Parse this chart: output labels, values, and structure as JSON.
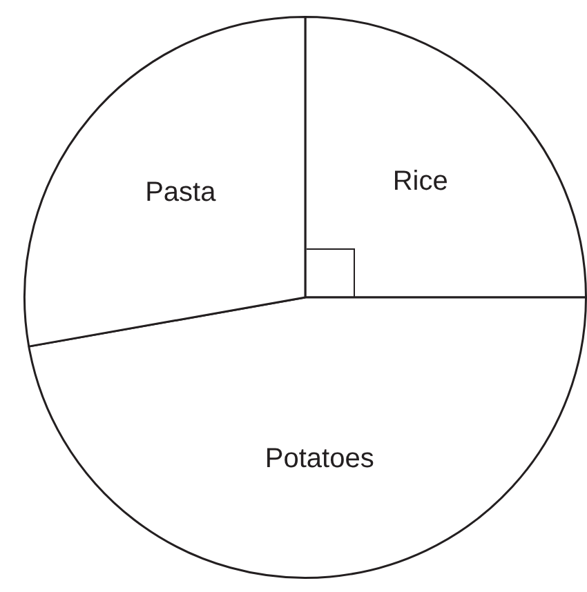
{
  "chart_data": {
    "type": "pie",
    "categories": [
      "Rice",
      "Potatoes",
      "Pasta"
    ],
    "values": [
      25,
      47.2,
      27.8
    ],
    "colors": [
      "#ffffff",
      "#ffffff",
      "#ffffff"
    ],
    "legend": false
  }
}
